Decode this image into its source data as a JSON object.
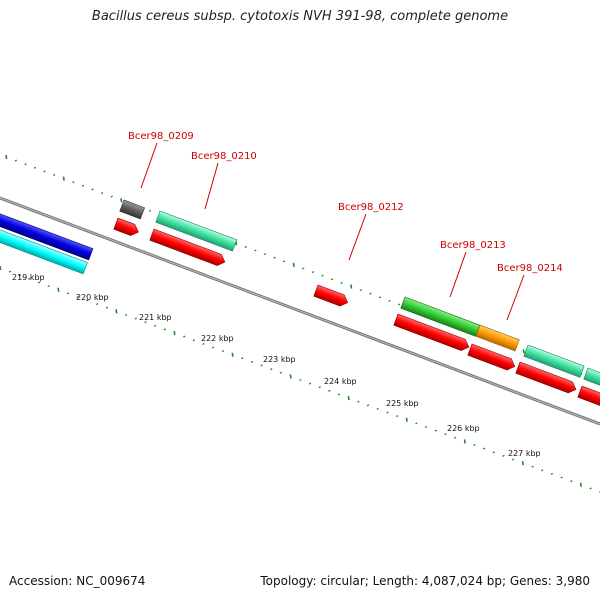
{
  "title": "Bacillus cereus subsp. cytotoxis NVH 391-98, complete genome",
  "footer": {
    "accession": "Accession: NC_009674",
    "summary": "Topology: circular; Length: 4,087,024 bp; Genes: 3,980"
  },
  "colors": {
    "backbone": "#808080",
    "gc_ticks": "#228b22",
    "cds_forward": "#ff0000",
    "rrna": "#00ffff",
    "trna": "#40e0a0",
    "other": "#606060",
    "blue_feature": "#0000dd",
    "green_feature": "#33cc33",
    "orange_feature": "#ff9900",
    "label": "#cc0000"
  },
  "scale_labels": [
    "219 kbp",
    "220 kbp",
    "221 kbp",
    "222 kbp",
    "223 kbp",
    "224 kbp",
    "225 kbp",
    "226 kbp",
    "227 kbp"
  ],
  "gene_labels": [
    "Bcer98_0209",
    "Bcer98_0210",
    "Bcer98_0212",
    "Bcer98_0213",
    "Bcer98_0214"
  ]
}
